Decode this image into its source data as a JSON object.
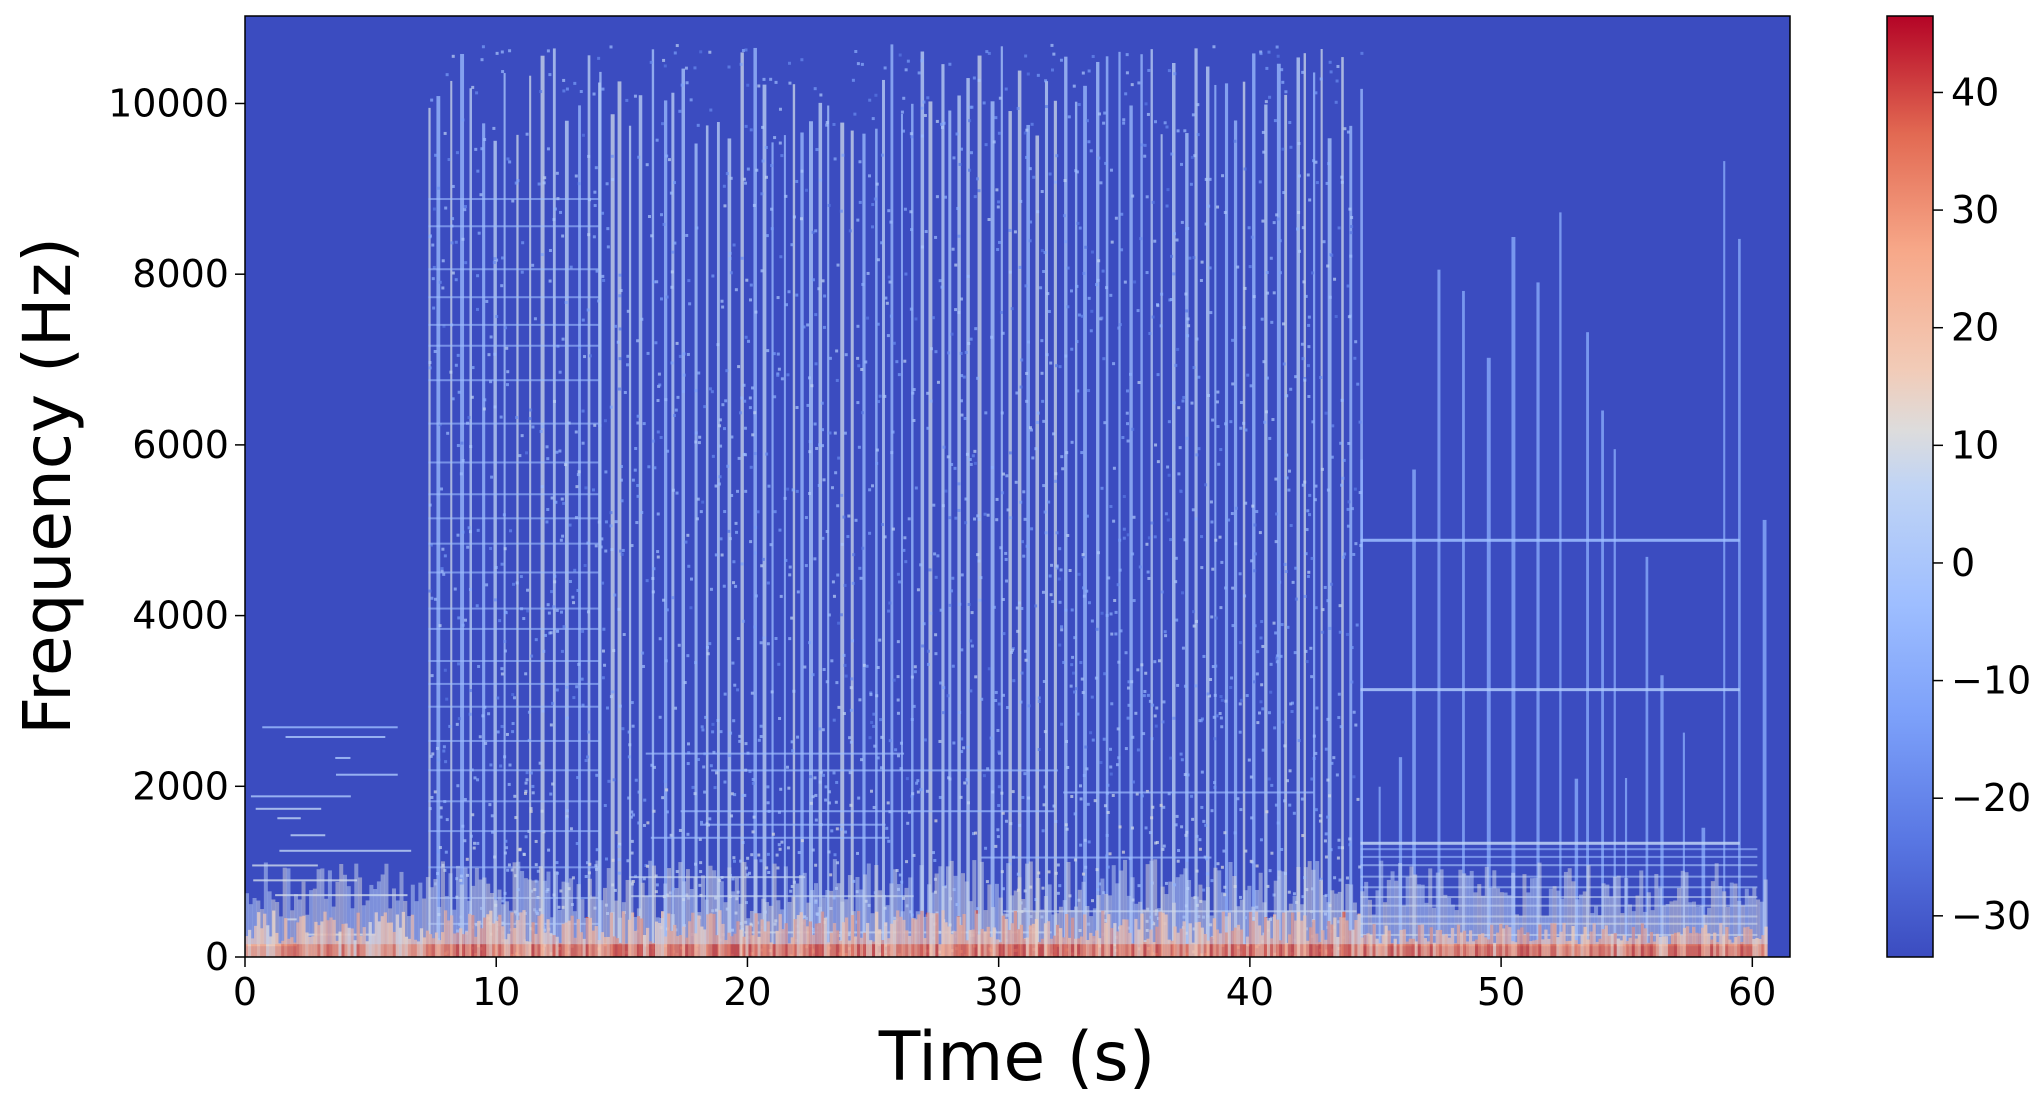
{
  "chart_data": {
    "type": "heatmap",
    "title": "",
    "xlabel": "Time (s)",
    "ylabel": "Frequency (Hz)",
    "xlim": [
      0,
      61.5
    ],
    "ylim": [
      0,
      11025
    ],
    "xticks": [
      0,
      10,
      20,
      30,
      40,
      50,
      60
    ],
    "yticks": [
      0,
      2000,
      4000,
      6000,
      8000,
      10000
    ],
    "colormap": "coolwarm",
    "colorbar": {
      "min": -33.5,
      "max": 46.5,
      "ticks": [
        -30,
        -20,
        -10,
        0,
        10,
        20,
        30,
        40
      ],
      "tick_labels": [
        "−30",
        "−20",
        "−10",
        "0",
        "10",
        "20",
        "30",
        "40"
      ]
    },
    "segments": [
      {
        "start": 0,
        "end": 7.3,
        "description": "sparse low-frequency harmonics up to ~3000 Hz"
      },
      {
        "start": 7.3,
        "end": 14.1,
        "description": "dense broadband content up to ~10700 Hz with horizontal partials"
      },
      {
        "start": 14.1,
        "end": 44.4,
        "description": "broadband content with strong periodic vertical onsets"
      },
      {
        "start": 44.4,
        "end": 60.5,
        "description": "tonal lines at ~4900, ~3150, ~1350 Hz with sparse onsets"
      }
    ],
    "grid": false,
    "legend": "none"
  }
}
